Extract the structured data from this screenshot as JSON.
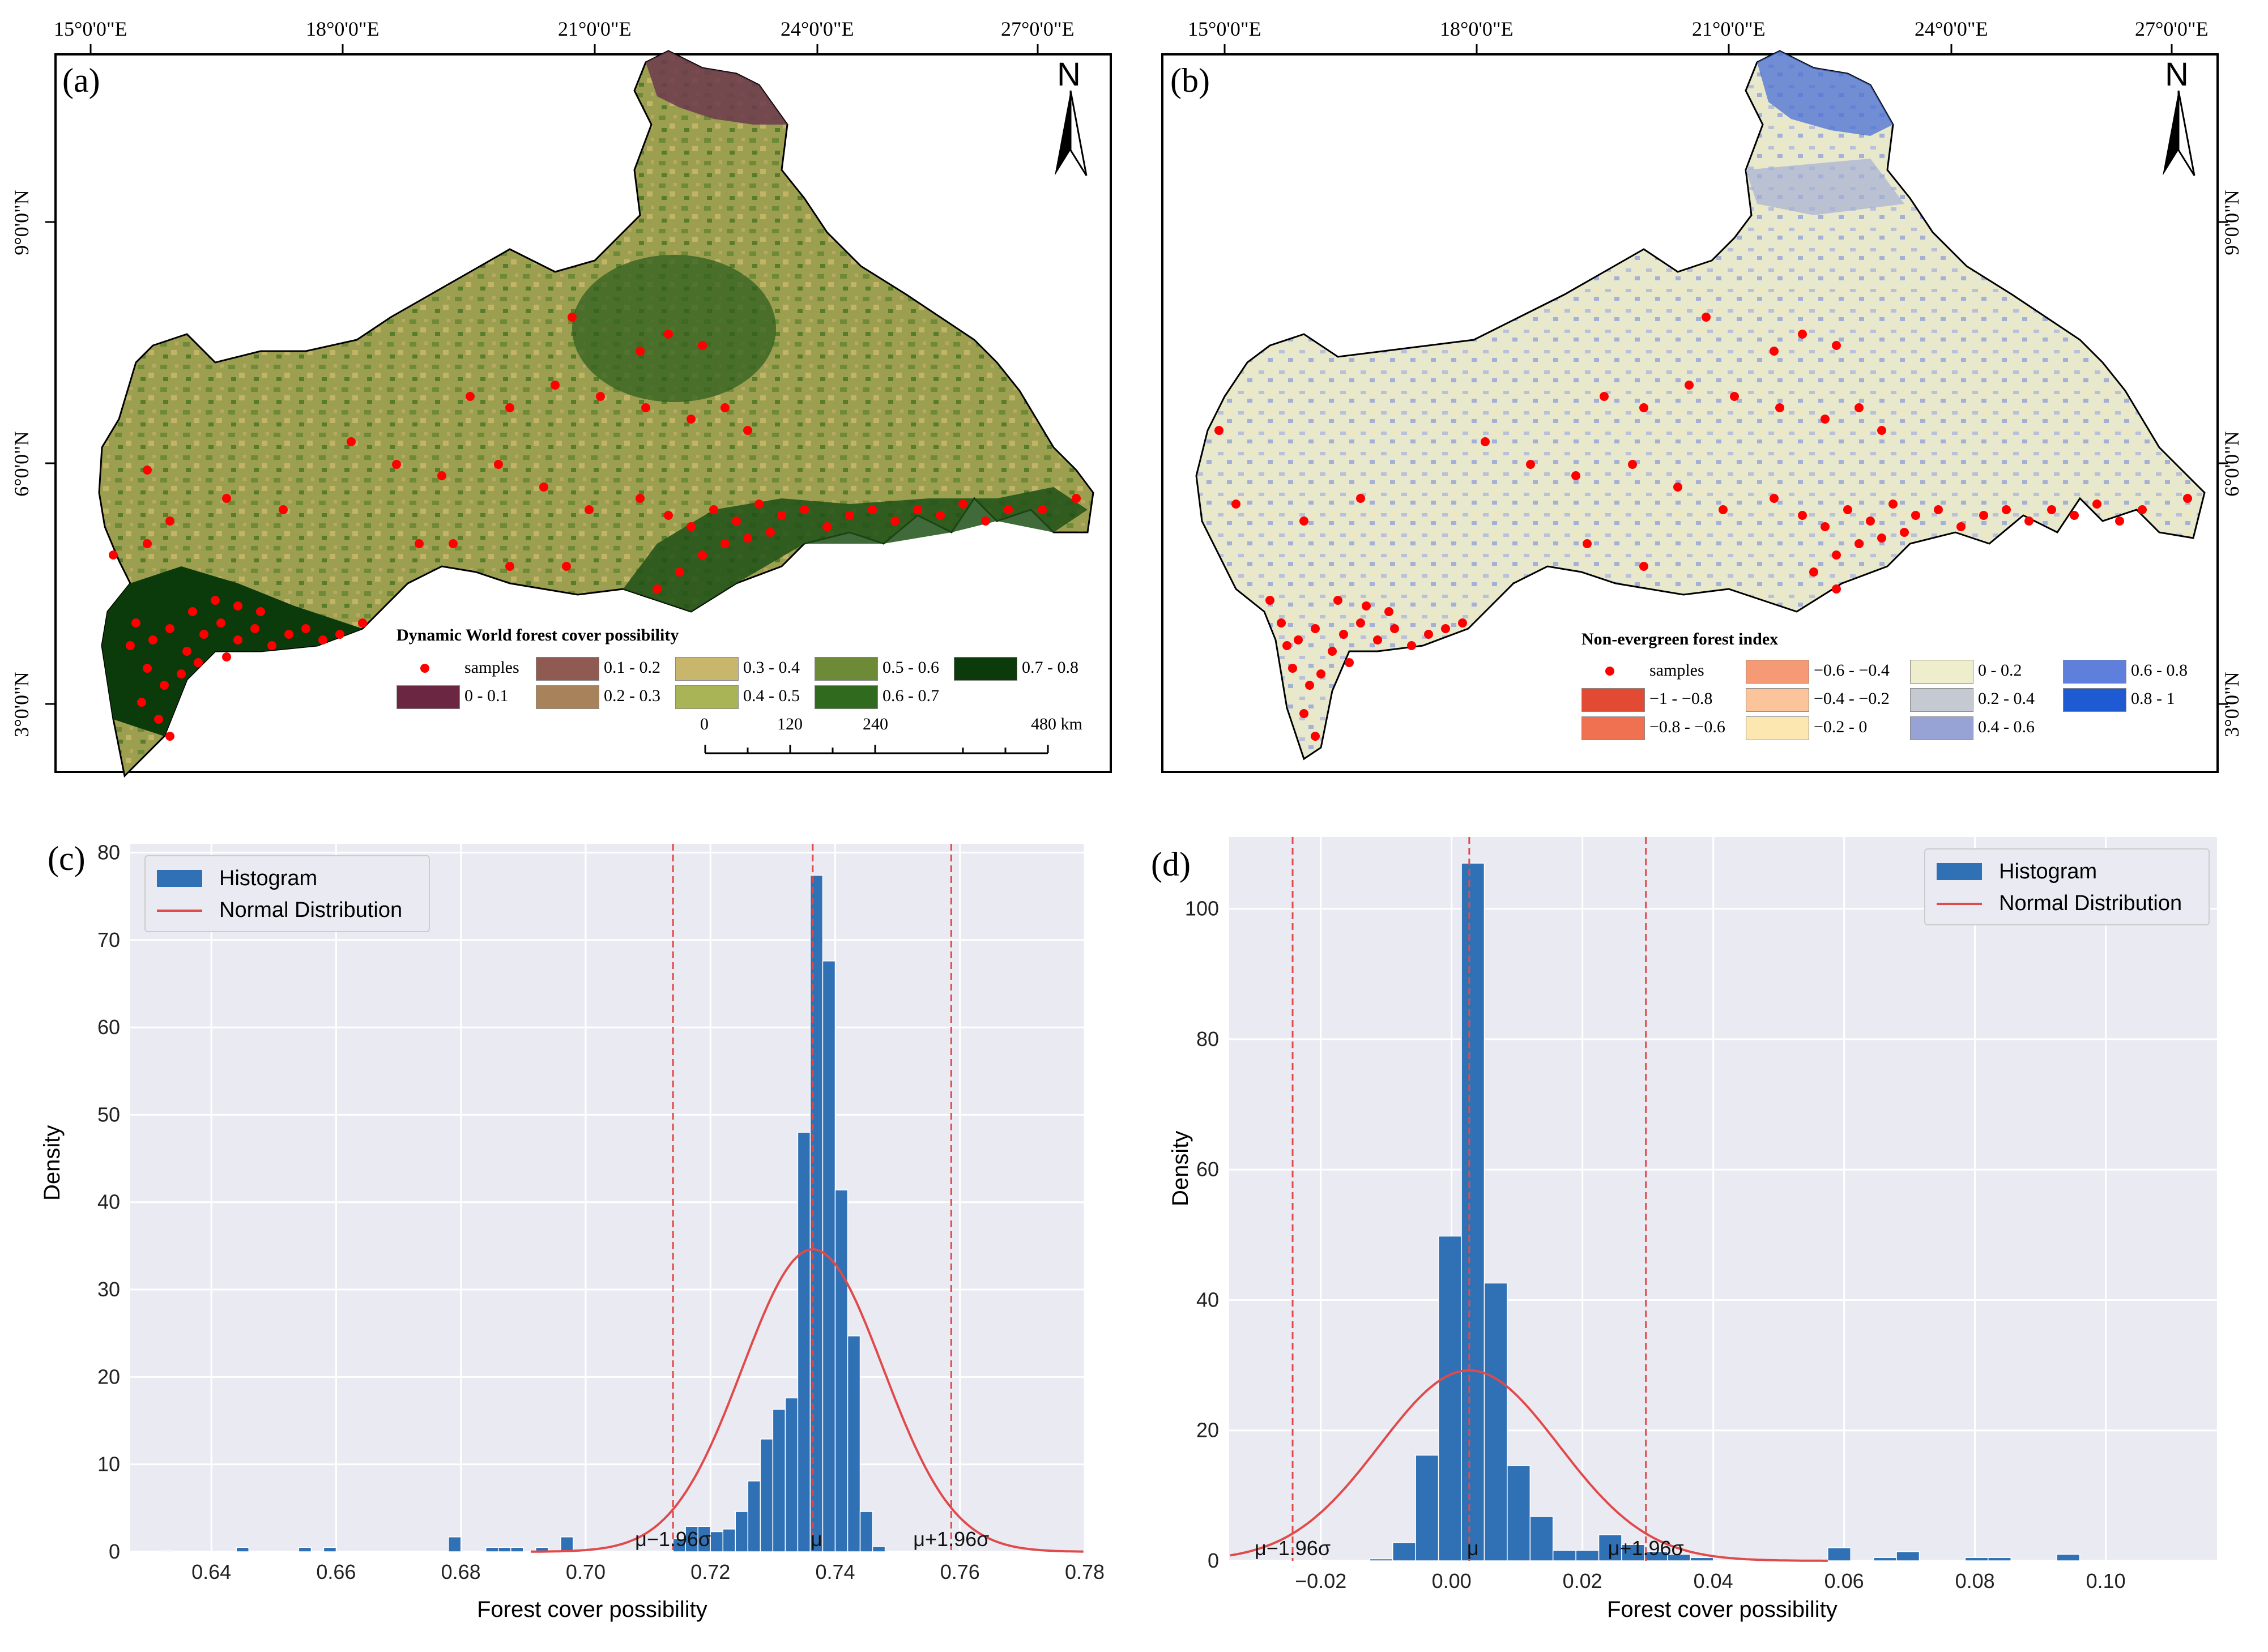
{
  "figure": {
    "panel_a": {
      "label": "(a)",
      "lon_ticks": [
        "15°0'0\"E",
        "18°0'0\"E",
        "21°0'0\"E",
        "24°0'0\"E",
        "27°0'0\"E"
      ],
      "lat_ticks": [
        "9°0'0\"N",
        "6°0'0\"N",
        "3°0'0\"N"
      ],
      "north": "N",
      "legend_title": "Dynamic World forest cover possibility",
      "legend_items": [
        {
          "label": "samples",
          "color": "#ff0000",
          "kind": "dot"
        },
        {
          "label": "0 - 0.1",
          "color": "#6b2642",
          "kind": "box"
        },
        {
          "label": "0.1 - 0.2",
          "color": "#8e5a52",
          "kind": "box"
        },
        {
          "label": "0.2 - 0.3",
          "color": "#a7825a",
          "kind": "box"
        },
        {
          "label": "0.3 - 0.4",
          "color": "#c8b66c",
          "kind": "box"
        },
        {
          "label": "0.4 - 0.5",
          "color": "#a8b455",
          "kind": "box"
        },
        {
          "label": "0.5 - 0.6",
          "color": "#6d8b37",
          "kind": "box"
        },
        {
          "label": "0.6 - 0.7",
          "color": "#2f6a1e",
          "kind": "box"
        },
        {
          "label": "0.7 - 0.8",
          "color": "#0b3a0b",
          "kind": "box"
        }
      ],
      "scale_ticks": [
        "0",
        "120",
        "240",
        "480 km"
      ]
    },
    "panel_b": {
      "label": "(b)",
      "lon_ticks": [
        "15°0'0\"E",
        "18°0'0\"E",
        "21°0'0\"E",
        "24°0'0\"E",
        "27°0'0\"E"
      ],
      "lat_ticks": [
        "9°0'0\"N",
        "6°0'0\"N",
        "3°0'0\"N"
      ],
      "north": "N",
      "legend_title": "Non-evergreen forest index",
      "legend_items": [
        {
          "label": "samples",
          "color": "#ff0000",
          "kind": "dot"
        },
        {
          "label": "−1 - −0.8",
          "color": "#e34a33",
          "kind": "box"
        },
        {
          "label": "−0.8 - −0.6",
          "color": "#f07151",
          "kind": "box"
        },
        {
          "label": "−0.6 - −0.4",
          "color": "#f59a74",
          "kind": "box"
        },
        {
          "label": "−0.4 - −0.2",
          "color": "#fbc49a",
          "kind": "box"
        },
        {
          "label": "−0.2 - 0",
          "color": "#fde7b0",
          "kind": "box"
        },
        {
          "label": "0 - 0.2",
          "color": "#eeeecc",
          "kind": "box"
        },
        {
          "label": "0.2 - 0.4",
          "color": "#c5cad2",
          "kind": "box"
        },
        {
          "label": "0.4 - 0.6",
          "color": "#96a3d4",
          "kind": "box"
        },
        {
          "label": "0.6 - 0.8",
          "color": "#5f7fdc",
          "kind": "box"
        },
        {
          "label": "0.8 - 1",
          "color": "#1e5bd2",
          "kind": "box"
        }
      ]
    },
    "colors": {
      "bar": "#3070b4",
      "curve": "#e04a4a",
      "grid_bg": "#eaeaf2",
      "map_a_fill": "#9a9d4e",
      "map_b_fill": "#e6e6cf"
    }
  },
  "chart_data": [
    {
      "id": "c",
      "label": "(c)",
      "type": "bar",
      "title": "",
      "xlabel": "Forest cover possibility",
      "ylabel": "Density",
      "xlim": [
        0.627,
        0.78
      ],
      "ylim": [
        0,
        81
      ],
      "xticks": [
        0.64,
        0.66,
        0.68,
        0.7,
        0.72,
        0.74,
        0.76,
        0.78
      ],
      "xtick_labels": [
        "0.64",
        "0.66",
        "0.68",
        "0.70",
        "0.72",
        "0.74",
        "0.76",
        "0.78"
      ],
      "yticks": [
        0,
        10,
        20,
        30,
        40,
        50,
        60,
        70,
        80
      ],
      "ytick_labels": [
        "0",
        "10",
        "20",
        "30",
        "40",
        "50",
        "60",
        "70",
        "80"
      ],
      "bin_width": 0.002,
      "bins": [
        [
          0.632,
          0.1
        ],
        [
          0.644,
          0.5
        ],
        [
          0.654,
          0.5
        ],
        [
          0.658,
          0.5
        ],
        [
          0.678,
          1.7
        ],
        [
          0.684,
          0.5
        ],
        [
          0.686,
          0.5
        ],
        [
          0.688,
          0.5
        ],
        [
          0.692,
          0.5
        ],
        [
          0.696,
          1.7
        ],
        [
          0.714,
          1.5
        ],
        [
          0.716,
          2.9
        ],
        [
          0.718,
          2.9
        ],
        [
          0.72,
          2.3
        ],
        [
          0.722,
          2.6
        ],
        [
          0.724,
          4.6
        ],
        [
          0.726,
          8.1
        ],
        [
          0.728,
          12.9
        ],
        [
          0.73,
          16.3
        ],
        [
          0.732,
          17.6
        ],
        [
          0.734,
          48.0
        ],
        [
          0.736,
          77.4
        ],
        [
          0.738,
          67.6
        ],
        [
          0.74,
          41.4
        ],
        [
          0.742,
          24.7
        ],
        [
          0.744,
          4.6
        ],
        [
          0.746,
          0.6
        ]
      ],
      "normal": {
        "mu": 0.7364,
        "sigma": 0.0113,
        "peak": 34.6
      },
      "vlines": [
        0.714,
        0.7364,
        0.7586
      ],
      "vline_labels": [
        "μ−1.96σ",
        "μ",
        "μ+1.96σ"
      ],
      "legend": [
        "Histogram",
        "Normal Distribution"
      ]
    },
    {
      "id": "d",
      "label": "(d)",
      "type": "bar",
      "title": "",
      "xlabel": "Forest cover possibility",
      "ylabel": "Density",
      "xlim": [
        -0.034,
        0.117
      ],
      "ylim": [
        0,
        111
      ],
      "xticks": [
        -0.02,
        0.0,
        0.02,
        0.04,
        0.06,
        0.08,
        0.1
      ],
      "xtick_labels": [
        "−0.02",
        "0.00",
        "0.02",
        "0.04",
        "0.06",
        "0.08",
        "0.10"
      ],
      "yticks": [
        0,
        20,
        40,
        60,
        80,
        100
      ],
      "ytick_labels": [
        "0",
        "20",
        "40",
        "60",
        "80",
        "100"
      ],
      "bin_width": 0.0035,
      "bins": [
        [
          -0.0125,
          0.3
        ],
        [
          -0.009,
          2.8
        ],
        [
          -0.0055,
          16.2
        ],
        [
          -0.002,
          49.8
        ],
        [
          0.0015,
          107.0
        ],
        [
          0.005,
          42.6
        ],
        [
          0.0085,
          14.6
        ],
        [
          0.012,
          6.8
        ],
        [
          0.0155,
          1.6
        ],
        [
          0.019,
          1.6
        ],
        [
          0.0225,
          4.0
        ],
        [
          0.026,
          2.5
        ],
        [
          0.0295,
          1.4
        ],
        [
          0.033,
          1.0
        ],
        [
          0.0365,
          0.5
        ],
        [
          0.0575,
          2.0
        ],
        [
          0.0645,
          0.5
        ],
        [
          0.068,
          1.4
        ],
        [
          0.0785,
          0.5
        ],
        [
          0.082,
          0.5
        ],
        [
          0.0925,
          1.0
        ]
      ],
      "normal": {
        "mu": 0.0027,
        "sigma": 0.0137,
        "peak": 29.2
      },
      "vlines": [
        -0.0243,
        0.0027,
        0.0297
      ],
      "vline_labels": [
        "μ−1.96σ",
        "μ",
        "μ+1.96σ"
      ],
      "legend": [
        "Histogram",
        "Normal Distribution"
      ]
    }
  ]
}
